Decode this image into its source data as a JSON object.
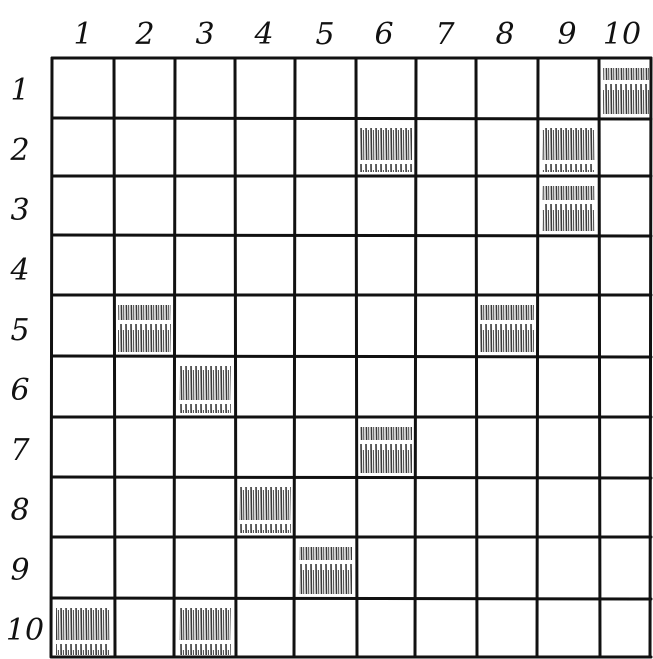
{
  "grid": {
    "rows": 10,
    "cols": 10,
    "column_labels": [
      "1",
      "2",
      "3",
      "4",
      "5",
      "6",
      "7",
      "8",
      "9",
      "10"
    ],
    "row_labels": [
      "1",
      "2",
      "3",
      "4",
      "5",
      "6",
      "7",
      "8",
      "9",
      "10"
    ],
    "shaded_cells": [
      {
        "row": 1,
        "col": 10
      },
      {
        "row": 2,
        "col": 6
      },
      {
        "row": 2,
        "col": 9
      },
      {
        "row": 3,
        "col": 9
      },
      {
        "row": 5,
        "col": 2
      },
      {
        "row": 5,
        "col": 8
      },
      {
        "row": 6,
        "col": 3
      },
      {
        "row": 7,
        "col": 6
      },
      {
        "row": 8,
        "col": 4
      },
      {
        "row": 9,
        "col": 5
      },
      {
        "row": 10,
        "col": 1
      },
      {
        "row": 10,
        "col": 3
      }
    ],
    "colors": {
      "line": "#111111",
      "shade": "#3a3a3a",
      "background": "#ffffff"
    }
  }
}
